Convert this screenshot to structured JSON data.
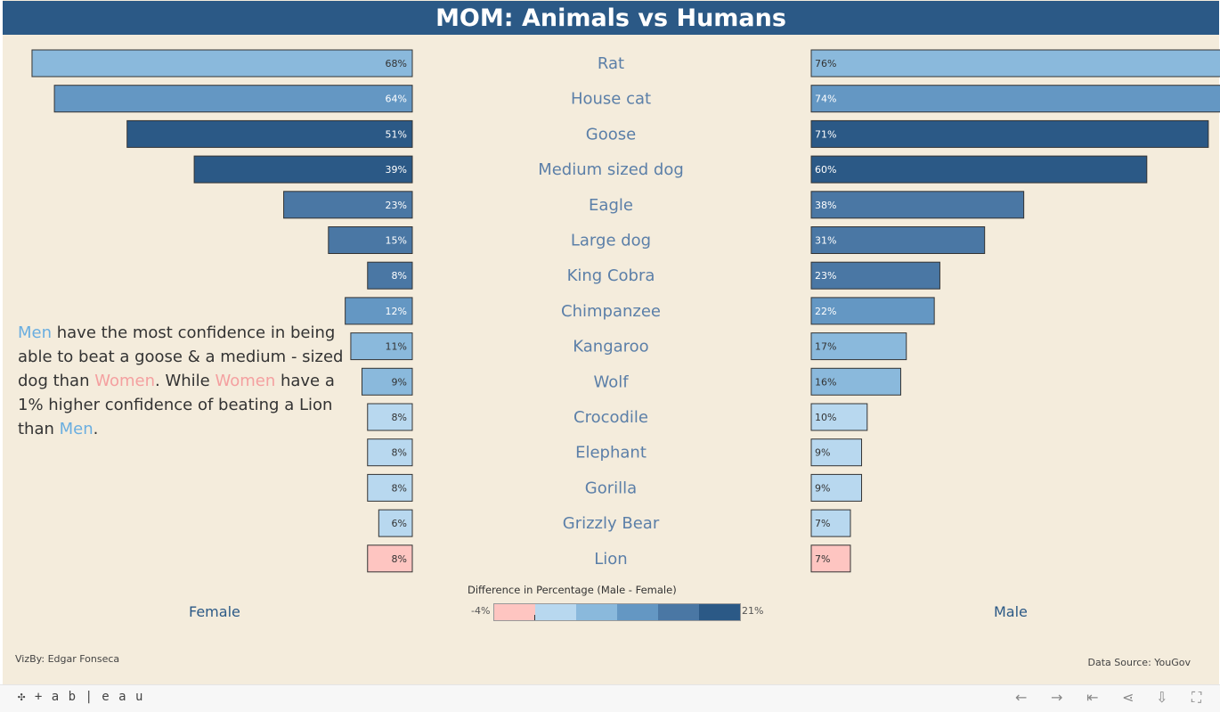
{
  "title": "MOM: Animals vs Humans",
  "chart_data": {
    "type": "bar",
    "categories": [
      "Rat",
      "House cat",
      "Goose",
      "Medium sized dog",
      "Eagle",
      "Large dog",
      "King Cobra",
      "Chimpanzee",
      "Kangaroo",
      "Wolf",
      "Crocodile",
      "Elephant",
      "Gorilla",
      "Grizzly Bear",
      "Lion"
    ],
    "series": [
      {
        "name": "Female",
        "values": [
          68,
          64,
          51,
          39,
          23,
          15,
          8,
          12,
          11,
          9,
          8,
          8,
          8,
          6,
          8
        ]
      },
      {
        "name": "Male",
        "values": [
          76,
          74,
          71,
          60,
          38,
          31,
          23,
          22,
          17,
          16,
          10,
          9,
          9,
          7,
          7
        ]
      }
    ],
    "colors": [
      "#8ab9dc",
      "#6497c3",
      "#2b5986",
      "#2b5986",
      "#4a77a4",
      "#4a77a4",
      "#4a77a4",
      "#6497c3",
      "#8ab9dc",
      "#8ab9dc",
      "#b8d8ef",
      "#b8d8ef",
      "#b8d8ef",
      "#b8d8ef",
      "#fec5c1"
    ],
    "female_label_colors": [
      "#333",
      "#fff",
      "#fff",
      "#fff",
      "#fff",
      "#fff",
      "#fff",
      "#fff",
      "#333",
      "#333",
      "#333",
      "#333",
      "#333",
      "#333",
      "#333"
    ],
    "male_label_colors": [
      "#333",
      "#fff",
      "#fff",
      "#fff",
      "#fff",
      "#fff",
      "#fff",
      "#fff",
      "#333",
      "#333",
      "#333",
      "#333",
      "#333",
      "#333",
      "#333"
    ],
    "label_format": "percent"
  },
  "legend": {
    "title": "Difference in Percentage (Male - Female)",
    "min_label": "-4%",
    "max_label": "21%",
    "colors": [
      "#fec5c1",
      "#b8d8ef",
      "#8ab9dc",
      "#6497c3",
      "#4a77a4",
      "#2b5986"
    ]
  },
  "axis_labels": {
    "left": "Female",
    "right": "Male"
  },
  "annotation": {
    "men": "Men",
    "t1": " have the most confidence in being able to beat a goose & a medium - sized dog than ",
    "women1": "Women",
    "t2": ". While ",
    "women2": "Women",
    "t3": " have a 1% higher confidence of beating a Lion than ",
    "men2": "Men",
    "t4": "."
  },
  "credit": "VizBy: Edgar Fonseca",
  "source": "Data Source: YouGov",
  "footer": {
    "logo": "+ a b | e a u"
  }
}
